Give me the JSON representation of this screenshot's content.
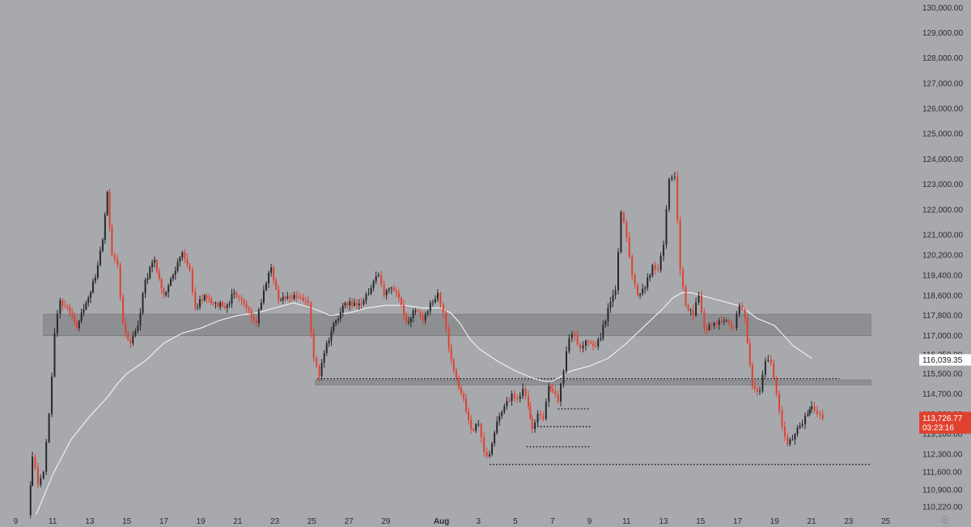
{
  "chart_data": {
    "type": "candlestick",
    "title": "",
    "colors": {
      "background": "#a7a9ad",
      "bull": "#26282c",
      "bear": "#e0412f",
      "ma": "#f4f4f4",
      "zone": "#8d8f93",
      "last_tag": "#e0412f",
      "current_tag": "#ffffff"
    },
    "y_ticks": [
      "130,000.00",
      "129,000.00",
      "128,000.00",
      "127,000.00",
      "126,000.00",
      "125,000.00",
      "124,000.00",
      "123,000.00",
      "122,000.00",
      "121,000.00",
      "120,200.00",
      "119,400.00",
      "118,600.00",
      "117,800.00",
      "117,000.00",
      "116,250.00",
      "115,500.00",
      "114,700.00",
      "113,900.00",
      "113,100.00",
      "112,300.00",
      "111,600.00",
      "110,900.00",
      "110,220.00"
    ],
    "ylim": [
      109900,
      130300
    ],
    "x_ticks": [
      {
        "label": "9",
        "day": 9
      },
      {
        "label": "11",
        "day": 11
      },
      {
        "label": "13",
        "day": 13
      },
      {
        "label": "15",
        "day": 15
      },
      {
        "label": "17",
        "day": 17
      },
      {
        "label": "19",
        "day": 19
      },
      {
        "label": "21",
        "day": 21
      },
      {
        "label": "23",
        "day": 23
      },
      {
        "label": "25",
        "day": 25
      },
      {
        "label": "27",
        "day": 27
      },
      {
        "label": "29",
        "day": 29
      },
      {
        "label": "Aug",
        "day": 32,
        "bold": true
      },
      {
        "label": "3",
        "day": 34
      },
      {
        "label": "5",
        "day": 36
      },
      {
        "label": "7",
        "day": 38
      },
      {
        "label": "9",
        "day": 40
      },
      {
        "label": "11",
        "day": 42
      },
      {
        "label": "13",
        "day": 44
      },
      {
        "label": "15",
        "day": 46
      },
      {
        "label": "17",
        "day": 48
      },
      {
        "label": "19",
        "day": 50
      },
      {
        "label": "21",
        "day": 52
      },
      {
        "label": "23",
        "day": 54
      },
      {
        "label": "25",
        "day": 56
      }
    ],
    "xlim": [
      8.5,
      57.2
    ],
    "candle_width_days": 0.14,
    "anchors": [
      [
        9.7,
        109900
      ],
      [
        9.9,
        112200
      ],
      [
        10.2,
        111100
      ],
      [
        10.5,
        111600
      ],
      [
        10.8,
        113900
      ],
      [
        11.1,
        117100
      ],
      [
        11.4,
        118400
      ],
      [
        11.8,
        118100
      ],
      [
        12.3,
        117300
      ],
      [
        12.8,
        118300
      ],
      [
        13.3,
        119300
      ],
      [
        13.7,
        120800
      ],
      [
        13.95,
        122700
      ],
      [
        14.2,
        120200
      ],
      [
        14.5,
        119800
      ],
      [
        14.8,
        117500
      ],
      [
        15.2,
        116700
      ],
      [
        15.6,
        117400
      ],
      [
        16.0,
        119200
      ],
      [
        16.5,
        120000
      ],
      [
        17.0,
        118600
      ],
      [
        17.5,
        119400
      ],
      [
        18.0,
        120300
      ],
      [
        18.4,
        119600
      ],
      [
        18.7,
        118100
      ],
      [
        19.2,
        118600
      ],
      [
        19.8,
        118300
      ],
      [
        20.3,
        118100
      ],
      [
        20.8,
        118700
      ],
      [
        21.2,
        118400
      ],
      [
        21.6,
        118000
      ],
      [
        22.0,
        117500
      ],
      [
        22.4,
        118800
      ],
      [
        22.8,
        119700
      ],
      [
        23.2,
        118400
      ],
      [
        23.8,
        118500
      ],
      [
        24.4,
        118500
      ],
      [
        24.8,
        118300
      ],
      [
        25.1,
        116100
      ],
      [
        25.4,
        115400
      ],
      [
        25.8,
        116700
      ],
      [
        26.3,
        117600
      ],
      [
        26.8,
        118300
      ],
      [
        27.3,
        118300
      ],
      [
        27.8,
        118400
      ],
      [
        28.2,
        118900
      ],
      [
        28.6,
        119400
      ],
      [
        28.9,
        118600
      ],
      [
        29.3,
        118900
      ],
      [
        29.7,
        118500
      ],
      [
        30.1,
        117500
      ],
      [
        30.6,
        118000
      ],
      [
        31.0,
        117600
      ],
      [
        31.4,
        118300
      ],
      [
        31.8,
        118700
      ],
      [
        32.1,
        117900
      ],
      [
        32.4,
        116500
      ],
      [
        32.8,
        115300
      ],
      [
        33.2,
        114500
      ],
      [
        33.6,
        113300
      ],
      [
        34.0,
        113500
      ],
      [
        34.3,
        112400
      ],
      [
        34.6,
        112300
      ],
      [
        35.0,
        113600
      ],
      [
        35.4,
        114200
      ],
      [
        35.8,
        114700
      ],
      [
        36.1,
        114500
      ],
      [
        36.4,
        114900
      ],
      [
        36.7,
        114200
      ],
      [
        36.9,
        113300
      ],
      [
        37.2,
        113900
      ],
      [
        37.5,
        113700
      ],
      [
        37.8,
        115000
      ],
      [
        38.0,
        114800
      ],
      [
        38.3,
        114400
      ],
      [
        38.6,
        115600
      ],
      [
        38.9,
        116900
      ],
      [
        39.2,
        117000
      ],
      [
        39.5,
        116500
      ],
      [
        39.8,
        116800
      ],
      [
        40.2,
        116600
      ],
      [
        40.6,
        116900
      ],
      [
        41.0,
        118100
      ],
      [
        41.4,
        118800
      ],
      [
        41.7,
        121900
      ],
      [
        42.0,
        120900
      ],
      [
        42.3,
        119400
      ],
      [
        42.6,
        118600
      ],
      [
        43.0,
        118900
      ],
      [
        43.4,
        119800
      ],
      [
        43.7,
        119600
      ],
      [
        44.0,
        120600
      ],
      [
        44.3,
        123200
      ],
      [
        44.6,
        123300
      ],
      [
        44.9,
        119600
      ],
      [
        45.2,
        118200
      ],
      [
        45.6,
        117800
      ],
      [
        45.9,
        118600
      ],
      [
        46.2,
        117300
      ],
      [
        46.6,
        117400
      ],
      [
        47.0,
        117600
      ],
      [
        47.4,
        117600
      ],
      [
        47.8,
        117300
      ],
      [
        48.1,
        118200
      ],
      [
        48.4,
        117700
      ],
      [
        48.8,
        115000
      ],
      [
        49.2,
        114800
      ],
      [
        49.5,
        116000
      ],
      [
        49.8,
        115900
      ],
      [
        50.1,
        114700
      ],
      [
        50.4,
        113400
      ],
      [
        50.7,
        112700
      ],
      [
        51.1,
        113100
      ],
      [
        51.5,
        113500
      ],
      [
        51.8,
        113900
      ],
      [
        52.0,
        114200
      ],
      [
        52.3,
        113900
      ],
      [
        52.6,
        113726.77
      ]
    ],
    "moving_average": [
      [
        10.1,
        109900
      ],
      [
        11.0,
        111500
      ],
      [
        12.0,
        112900
      ],
      [
        13.0,
        113800
      ],
      [
        14.0,
        114600
      ],
      [
        14.5,
        115100
      ],
      [
        15.0,
        115500
      ],
      [
        16.0,
        116000
      ],
      [
        17.0,
        116700
      ],
      [
        18.0,
        117100
      ],
      [
        19.0,
        117300
      ],
      [
        20.0,
        117600
      ],
      [
        21.0,
        117800
      ],
      [
        22.0,
        117900
      ],
      [
        23.0,
        118100
      ],
      [
        24.0,
        118300
      ],
      [
        25.0,
        118100
      ],
      [
        26.0,
        117800
      ],
      [
        27.0,
        117900
      ],
      [
        28.0,
        118100
      ],
      [
        29.0,
        118200
      ],
      [
        30.0,
        118200
      ],
      [
        31.0,
        118100
      ],
      [
        32.0,
        118100
      ],
      [
        32.5,
        117900
      ],
      [
        33.0,
        117500
      ],
      [
        33.5,
        116900
      ],
      [
        34.0,
        116500
      ],
      [
        35.0,
        116000
      ],
      [
        36.0,
        115600
      ],
      [
        37.0,
        115300
      ],
      [
        37.5,
        115200
      ],
      [
        38.0,
        115200
      ],
      [
        39.0,
        115600
      ],
      [
        40.0,
        115800
      ],
      [
        41.0,
        116100
      ],
      [
        42.0,
        116700
      ],
      [
        43.0,
        117400
      ],
      [
        44.0,
        118100
      ],
      [
        44.5,
        118500
      ],
      [
        45.0,
        118700
      ],
      [
        45.5,
        118700
      ],
      [
        46.0,
        118600
      ],
      [
        46.5,
        118500
      ],
      [
        47.0,
        118400
      ],
      [
        48.0,
        118200
      ],
      [
        48.5,
        118000
      ],
      [
        49.0,
        117700
      ],
      [
        50.0,
        117400
      ],
      [
        51.0,
        116600
      ],
      [
        52.0,
        116100
      ]
    ],
    "zones": [
      {
        "from_day": 10.5,
        "to_day": 55.2,
        "low": 117000,
        "high": 117850
      },
      {
        "from_day": 25.2,
        "to_day": 55.2,
        "low": 115050,
        "high": 115250
      }
    ],
    "levels": [
      {
        "from_day": 25.3,
        "to_day": 53.5,
        "price": 115300
      },
      {
        "from_day": 38.3,
        "to_day": 40.0,
        "price": 114100
      },
      {
        "from_day": 37.0,
        "to_day": 40.1,
        "price": 113400
      },
      {
        "from_day": 36.6,
        "to_day": 40.1,
        "price": 112600
      },
      {
        "from_day": 34.6,
        "to_day": 55.2,
        "price": 111900
      }
    ],
    "current_price_label": "116,039.35",
    "current_price": 116039.35,
    "last_price_label": "113,726.77",
    "last_price": 113726.77,
    "countdown_label": "03:23:16"
  }
}
